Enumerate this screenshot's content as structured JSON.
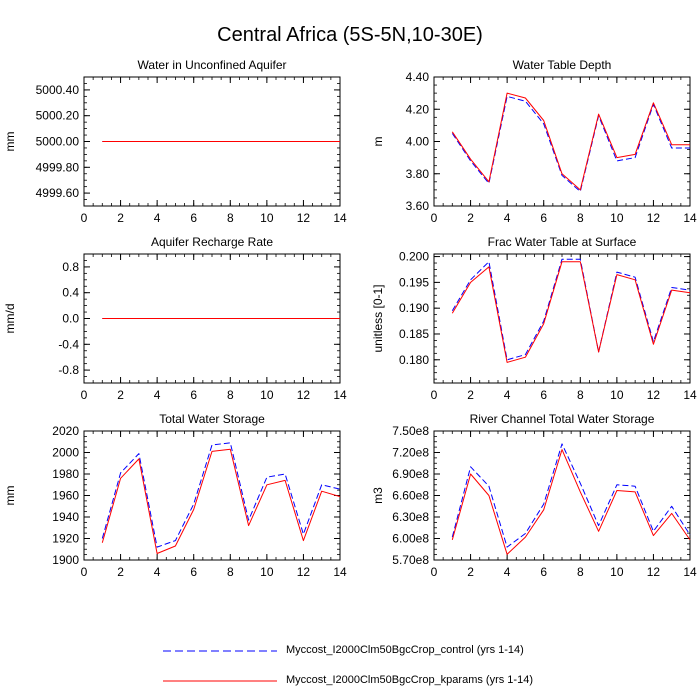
{
  "title": "Central Africa (5S-5N,10-30E)",
  "colors": {
    "control": "#0000ff",
    "kparams": "#ff0000",
    "axis": "#000000"
  },
  "legend": [
    {
      "key": "control",
      "label": "Myccost_I2000Clm50BgcCrop_control (yrs 1-14)",
      "style": "dashed",
      "color": "#0000ff"
    },
    {
      "key": "kparams",
      "label": "Myccost_I2000Clm50BgcCrop_kparams (yrs 1-14)",
      "style": "solid",
      "color": "#ff0000"
    }
  ],
  "chart_data": [
    {
      "type": "line",
      "title": "Water in Unconfined Aquifer",
      "ylabel": "mm",
      "xlim": [
        0,
        14
      ],
      "ylim": [
        4999.5,
        5000.5
      ],
      "xticks": [
        0,
        2,
        4,
        6,
        8,
        10,
        12,
        14
      ],
      "xtick_labels": [
        "0",
        "2",
        "4",
        "6",
        "8",
        "10",
        "12",
        "14"
      ],
      "yticks": [
        4999.6,
        4999.8,
        5000.0,
        5000.2,
        5000.4
      ],
      "ytick_labels": [
        "4999.60",
        "4999.80",
        "5000.00",
        "5000.20",
        "5000.40"
      ],
      "x": [
        1,
        2,
        3,
        4,
        5,
        6,
        7,
        8,
        9,
        10,
        11,
        12,
        13,
        14
      ],
      "series": [
        {
          "name": "control",
          "values": [
            5000,
            5000,
            5000,
            5000,
            5000,
            5000,
            5000,
            5000,
            5000,
            5000,
            5000,
            5000,
            5000,
            5000
          ]
        },
        {
          "name": "kparams",
          "values": [
            5000,
            5000,
            5000,
            5000,
            5000,
            5000,
            5000,
            5000,
            5000,
            5000,
            5000,
            5000,
            5000,
            5000
          ]
        }
      ]
    },
    {
      "type": "line",
      "title": "Water Table Depth",
      "ylabel": "m",
      "xlim": [
        0,
        14
      ],
      "ylim": [
        3.6,
        4.4
      ],
      "xticks": [
        0,
        2,
        4,
        6,
        8,
        10,
        12,
        14
      ],
      "xtick_labels": [
        "0",
        "2",
        "4",
        "6",
        "8",
        "10",
        "12",
        "14"
      ],
      "yticks": [
        3.6,
        3.8,
        4.0,
        4.2,
        4.4
      ],
      "ytick_labels": [
        "3.60",
        "3.80",
        "4.00",
        "4.20",
        "4.40"
      ],
      "x": [
        1,
        2,
        3,
        4,
        5,
        6,
        7,
        8,
        9,
        10,
        11,
        12,
        13,
        14
      ],
      "series": [
        {
          "name": "control",
          "values": [
            4.05,
            3.88,
            3.74,
            4.28,
            4.25,
            4.11,
            3.79,
            3.69,
            4.16,
            3.88,
            3.9,
            4.23,
            3.96,
            3.96
          ]
        },
        {
          "name": "kparams",
          "values": [
            4.06,
            3.89,
            3.75,
            4.3,
            4.27,
            4.13,
            3.8,
            3.7,
            4.17,
            3.9,
            3.92,
            4.24,
            3.98,
            3.98
          ]
        }
      ]
    },
    {
      "type": "line",
      "title": "Aquifer Recharge Rate",
      "ylabel": "mm/d",
      "xlim": [
        0,
        14
      ],
      "ylim": [
        -1,
        1
      ],
      "xticks": [
        0,
        2,
        4,
        6,
        8,
        10,
        12,
        14
      ],
      "xtick_labels": [
        "0",
        "2",
        "4",
        "6",
        "8",
        "10",
        "12",
        "14"
      ],
      "yticks": [
        -0.8,
        -0.4,
        0.0,
        0.4,
        0.8
      ],
      "ytick_labels": [
        "-0.8",
        "-0.4",
        "0.0",
        "0.4",
        "0.8"
      ],
      "x": [
        1,
        2,
        3,
        4,
        5,
        6,
        7,
        8,
        9,
        10,
        11,
        12,
        13,
        14
      ],
      "series": [
        {
          "name": "control",
          "values": [
            0,
            0,
            0,
            0,
            0,
            0,
            0,
            0,
            0,
            0,
            0,
            0,
            0,
            0
          ]
        },
        {
          "name": "kparams",
          "values": [
            0,
            0,
            0,
            0,
            0,
            0,
            0,
            0,
            0,
            0,
            0,
            0,
            0,
            0
          ]
        }
      ]
    },
    {
      "type": "line",
      "title": "Frac Water Table at Surface",
      "ylabel": "unitless [0-1]",
      "xlim": [
        0,
        14
      ],
      "ylim": [
        0.1755,
        0.2005
      ],
      "xticks": [
        0,
        2,
        4,
        6,
        8,
        10,
        12,
        14
      ],
      "xtick_labels": [
        "0",
        "2",
        "4",
        "6",
        "8",
        "10",
        "12",
        "14"
      ],
      "yticks": [
        0.18,
        0.185,
        0.19,
        0.195,
        0.2
      ],
      "ytick_labels": [
        "0.180",
        "0.185",
        "0.190",
        "0.195",
        "0.200"
      ],
      "x": [
        1,
        2,
        3,
        4,
        5,
        6,
        7,
        8,
        9,
        10,
        11,
        12,
        13,
        14
      ],
      "series": [
        {
          "name": "control",
          "values": [
            0.1895,
            0.1955,
            0.199,
            0.18,
            0.181,
            0.1875,
            0.1995,
            0.1995,
            0.1815,
            0.197,
            0.196,
            0.1835,
            0.194,
            0.1935
          ]
        },
        {
          "name": "kparams",
          "values": [
            0.189,
            0.195,
            0.198,
            0.1795,
            0.1805,
            0.187,
            0.199,
            0.199,
            0.1815,
            0.1965,
            0.1955,
            0.183,
            0.1935,
            0.193
          ]
        }
      ]
    },
    {
      "type": "line",
      "title": "Total Water Storage",
      "ylabel": "mm",
      "xlim": [
        0,
        14
      ],
      "ylim": [
        1900,
        2020
      ],
      "xticks": [
        0,
        2,
        4,
        6,
        8,
        10,
        12,
        14
      ],
      "xtick_labels": [
        "0",
        "2",
        "4",
        "6",
        "8",
        "10",
        "12",
        "14"
      ],
      "yticks": [
        1900,
        1920,
        1940,
        1960,
        1980,
        2000,
        2020
      ],
      "ytick_labels": [
        "1900",
        "1920",
        "1940",
        "1960",
        "1980",
        "2000",
        "2020"
      ],
      "x": [
        1,
        2,
        3,
        4,
        5,
        6,
        7,
        8,
        9,
        10,
        11,
        12,
        13,
        14
      ],
      "series": [
        {
          "name": "control",
          "values": [
            1920,
            1981,
            1999,
            1912,
            1918,
            1952,
            2007,
            2009,
            1937,
            1977,
            1980,
            1924,
            1970,
            1966
          ]
        },
        {
          "name": "kparams",
          "values": [
            1916,
            1976,
            1994,
            1906,
            1913,
            1947,
            2001,
            2003,
            1932,
            1970,
            1974,
            1918,
            1964,
            1959
          ]
        }
      ]
    },
    {
      "type": "line",
      "title": "River Channel Total Water Storage",
      "ylabel": "m3",
      "xlim": [
        0,
        14
      ],
      "ylim": [
        570000000,
        750000000
      ],
      "xticks": [
        0,
        2,
        4,
        6,
        8,
        10,
        12,
        14
      ],
      "xtick_labels": [
        "0",
        "2",
        "4",
        "6",
        "8",
        "10",
        "12",
        "14"
      ],
      "yticks": [
        570000000,
        600000000,
        630000000,
        660000000,
        690000000,
        720000000,
        750000000
      ],
      "ytick_labels": [
        "5.70e8",
        "6.00e8",
        "6.30e8",
        "6.60e8",
        "6.90e8",
        "7.20e8",
        "7.50e8"
      ],
      "x": [
        1,
        2,
        3,
        4,
        5,
        6,
        7,
        8,
        9,
        10,
        11,
        12,
        13,
        14
      ],
      "series": [
        {
          "name": "control",
          "values": [
            602000000,
            700000000,
            673000000,
            588000000,
            607000000,
            648000000,
            732000000,
            677000000,
            618000000,
            675000000,
            673000000,
            610000000,
            645000000,
            605000000
          ]
        },
        {
          "name": "kparams",
          "values": [
            598000000,
            690000000,
            660000000,
            578000000,
            602000000,
            640000000,
            724000000,
            665000000,
            610000000,
            667000000,
            665000000,
            604000000,
            635000000,
            598000000
          ]
        }
      ]
    }
  ]
}
